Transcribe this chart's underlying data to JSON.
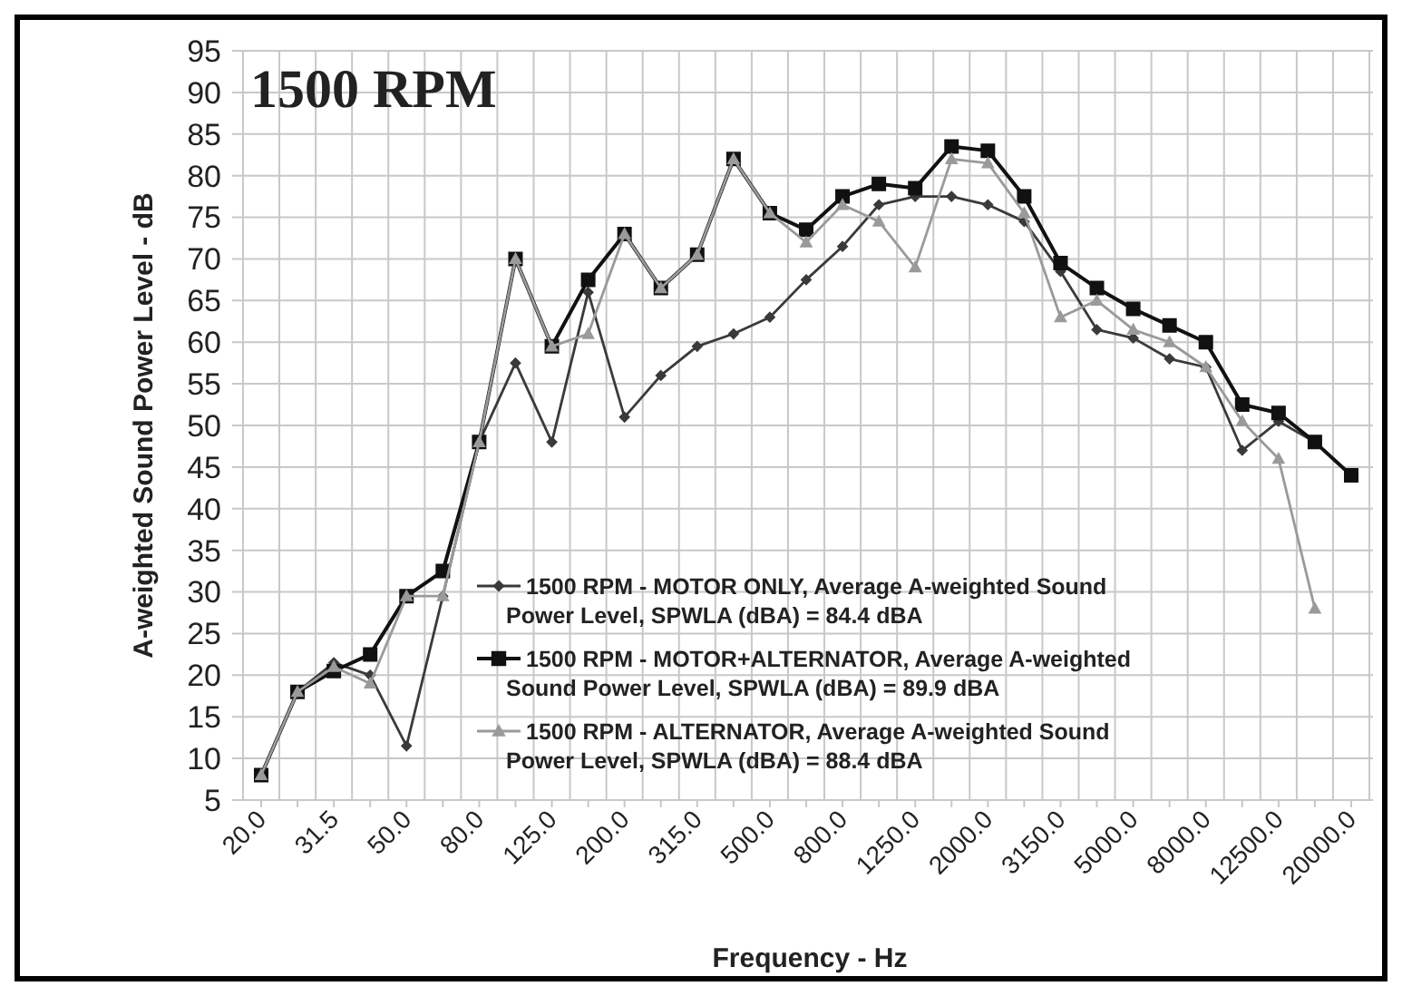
{
  "chart_data": {
    "type": "line",
    "title": "1500 RPM",
    "xlabel": "Frequency - Hz",
    "ylabel": "A-weighted Sound Power Level - dB",
    "categories": [
      "20.0",
      null,
      "31.5",
      null,
      "50.0",
      null,
      "80.0",
      null,
      "125.0",
      null,
      "200.0",
      null,
      "315.0",
      null,
      "500.0",
      null,
      "800.0",
      null,
      "1250.0",
      null,
      "2000.0",
      null,
      "3150.0",
      null,
      "5000.0",
      null,
      "8000.0",
      null,
      "12500.0",
      null,
      "20000.0"
    ],
    "series": [
      {
        "name": "1500 RPM - MOTOR ONLY, Average A-weighted Sound Power Level, SPWLA (dBA) = 84.4 dBA",
        "color": "#3a3a3a",
        "marker": "diamond",
        "values": [
          8,
          18,
          21.5,
          20,
          11.5,
          29.5,
          48,
          57.5,
          48,
          66,
          51,
          56,
          59.5,
          61,
          63,
          67.5,
          71.5,
          76.5,
          77.5,
          77.5,
          76.5,
          74.5,
          68.5,
          61.5,
          60.5,
          58,
          57,
          47,
          50.5,
          48,
          44
        ]
      },
      {
        "name": "1500 RPM - MOTOR+ALTERNATOR, Average A-weighted Sound Power Level, SPWLA (dBA) = 89.9 dBA",
        "color": "#111111",
        "marker": "square",
        "values": [
          8,
          18,
          20.5,
          22.5,
          29.5,
          32.5,
          48,
          70,
          59.5,
          67.5,
          73,
          66.5,
          70.5,
          82,
          75.5,
          73.5,
          77.5,
          79,
          78.5,
          83.5,
          83,
          77.5,
          69.5,
          66.5,
          64,
          62,
          60,
          52.5,
          51.5,
          48,
          44
        ]
      },
      {
        "name": "1500 RPM - ALTERNATOR, Average A-weighted Sound Power Level, SPWLA (dBA) = 88.4 dBA",
        "color": "#9a9a9a",
        "marker": "triangle",
        "values": [
          8,
          18,
          21,
          19,
          29.5,
          29.5,
          48,
          70,
          59.5,
          61,
          73,
          66.5,
          70.5,
          82,
          75.5,
          72,
          76.5,
          74.5,
          69,
          82,
          81.5,
          75.5,
          63,
          65,
          61.5,
          60,
          57,
          50.5,
          46,
          28,
          null
        ]
      }
    ],
    "ylim": [
      5,
      95
    ],
    "yticks": [
      5,
      10,
      15,
      20,
      25,
      30,
      35,
      40,
      45,
      50,
      55,
      60,
      65,
      70,
      75,
      80,
      85,
      90,
      95
    ],
    "grid": true,
    "legend": "bottom",
    "line_style": "solid"
  }
}
